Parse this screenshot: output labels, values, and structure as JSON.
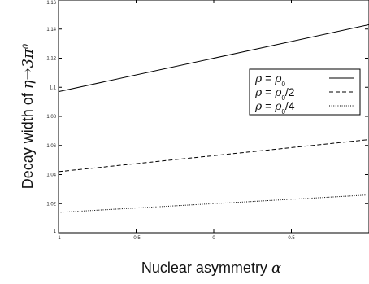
{
  "chart_data": {
    "type": "line",
    "title": "",
    "xlabel_prefix": "Nuclear asymmetry ",
    "xlabel_symbol": "α",
    "ylabel_prefix": "Decay width of ",
    "ylabel_symbol": "η→3π",
    "ylabel_sup": "0",
    "xlim": [
      -1,
      1
    ],
    "ylim": [
      1,
      1.16
    ],
    "xticks": [
      -1,
      -0.5,
      0,
      0.5
    ],
    "xtick_labels": [
      "-1",
      "-0.5",
      "0",
      "0.5"
    ],
    "yticks": [
      1,
      1.02,
      1.04,
      1.06,
      1.08,
      1.1,
      1.12,
      1.14,
      1.16
    ],
    "ytick_labels": [
      "1",
      "1.02",
      "1.04",
      "1.06",
      "1.08",
      "1.1",
      "1.12",
      "1.14",
      "1.16"
    ],
    "grid": false,
    "legend_position": "right",
    "series": [
      {
        "name": "ρ = ρ0",
        "label_rho": "ρ",
        "label_mid": " = ",
        "label_rho2": "ρ",
        "label_sub": "0",
        "label_suffix": "",
        "style": "solid",
        "x": [
          -1,
          1
        ],
        "y": [
          1.097,
          1.143
        ]
      },
      {
        "name": "ρ = ρ0/2",
        "label_rho": "ρ",
        "label_mid": " = ",
        "label_rho2": "ρ",
        "label_sub": "0",
        "label_suffix": "/2",
        "style": "dashed",
        "x": [
          -1,
          1
        ],
        "y": [
          1.042,
          1.064
        ]
      },
      {
        "name": "ρ = ρ0/4",
        "label_rho": "ρ",
        "label_mid": " = ",
        "label_rho2": "ρ",
        "label_sub": "0",
        "label_suffix": "/4",
        "style": "dotted",
        "x": [
          -1,
          1
        ],
        "y": [
          1.014,
          1.026
        ]
      }
    ]
  }
}
